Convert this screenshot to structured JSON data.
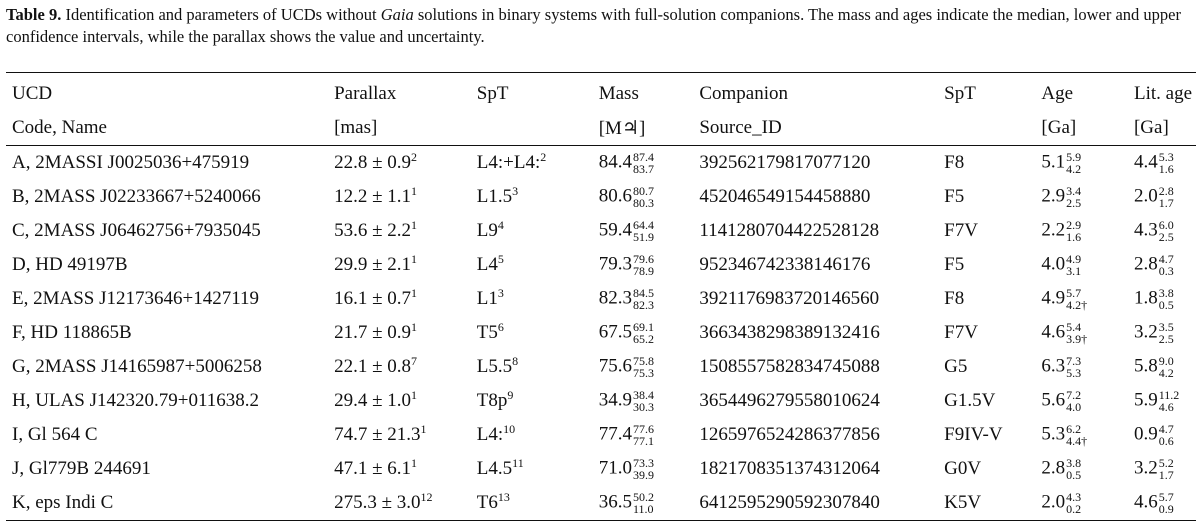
{
  "caption": {
    "label": "Table 9.",
    "text_before": "Identification and parameters of UCDs without",
    "text_em": "Gaia",
    "text_after": "solutions in binary systems with full-solution companions. The mass and ages indicate the median, lower and upper confidence intervals, while the parallax shows the value and uncertainty."
  },
  "header": {
    "row1": [
      "UCD",
      "Parallax",
      "SpT",
      "Mass",
      "Companion",
      "SpT",
      "Age",
      "Lit. age"
    ],
    "row2": [
      "Code, Name",
      "[mas]",
      "",
      "[M♃]",
      "Source_ID",
      "",
      "[Ga]",
      "[Ga]"
    ]
  },
  "rows": [
    {
      "ucd": "A, 2MASSI J0025036+475919",
      "plx": "22.8 ± 0.9",
      "plx_ref": "2",
      "spt": "L4:+L4:",
      "spt_ref": "2",
      "mass": "84.4",
      "mass_up": "87.4",
      "mass_lo": "83.7",
      "companion": "392562179817077120",
      "comp_spt": "F8",
      "age": "5.1",
      "age_up": "5.9",
      "age_lo": "4.2",
      "lit": "4.4",
      "lit_up": "5.3",
      "lit_lo": "1.6"
    },
    {
      "ucd": "B, 2MASS J02233667+5240066",
      "plx": "12.2 ± 1.1",
      "plx_ref": "1",
      "spt": "L1.5",
      "spt_ref": "3",
      "mass": "80.6",
      "mass_up": "80.7",
      "mass_lo": "80.3",
      "companion": "452046549154458880",
      "comp_spt": "F5",
      "age": "2.9",
      "age_up": "3.4",
      "age_lo": "2.5",
      "lit": "2.0",
      "lit_up": "2.8",
      "lit_lo": "1.7"
    },
    {
      "ucd": "C, 2MASS J06462756+7935045",
      "plx": "53.6 ± 2.2",
      "plx_ref": "1",
      "spt": "L9",
      "spt_ref": "4",
      "mass": "59.4",
      "mass_up": "64.4",
      "mass_lo": "51.9",
      "companion": "1141280704422528128",
      "comp_spt": "F7V",
      "age": "2.2",
      "age_up": "2.9",
      "age_lo": "1.6",
      "lit": "4.3",
      "lit_up": "6.0",
      "lit_lo": "2.5"
    },
    {
      "ucd": "D, HD 49197B",
      "plx": "29.9 ± 2.1",
      "plx_ref": "1",
      "spt": "L4",
      "spt_ref": "5",
      "mass": "79.3",
      "mass_up": "79.6",
      "mass_lo": "78.9",
      "companion": "952346742338146176",
      "comp_spt": "F5",
      "age": "4.0",
      "age_up": "4.9",
      "age_lo": "3.1",
      "lit": "2.8",
      "lit_up": "4.7",
      "lit_lo": "0.3"
    },
    {
      "ucd": "E, 2MASS J12173646+1427119",
      "plx": "16.1 ± 0.7",
      "plx_ref": "1",
      "spt": "L1",
      "spt_ref": "3",
      "mass": "82.3",
      "mass_up": "84.5",
      "mass_lo": "82.3",
      "companion": "3921176983720146560",
      "comp_spt": "F8",
      "age": "4.9",
      "age_up": "5.7",
      "age_lo": "4.2†",
      "lit": "1.8",
      "lit_up": "3.8",
      "lit_lo": "0.5"
    },
    {
      "ucd": "F, HD 118865B",
      "plx": "21.7 ± 0.9",
      "plx_ref": "1",
      "spt": "T5",
      "spt_ref": "6",
      "mass": "67.5",
      "mass_up": "69.1",
      "mass_lo": "65.2",
      "companion": "3663438298389132416",
      "comp_spt": "F7V",
      "age": "4.6",
      "age_up": "5.4",
      "age_lo": "3.9†",
      "lit": "3.2",
      "lit_up": "3.5",
      "lit_lo": "2.5"
    },
    {
      "ucd": "G, 2MASS J14165987+5006258",
      "plx": "22.1 ± 0.8",
      "plx_ref": "7",
      "spt": "L5.5",
      "spt_ref": "8",
      "mass": "75.6",
      "mass_up": "75.8",
      "mass_lo": "75.3",
      "companion": "1508557582834745088",
      "comp_spt": "G5",
      "age": "6.3",
      "age_up": "7.3",
      "age_lo": "5.3",
      "lit": "5.8",
      "lit_up": "9.0",
      "lit_lo": "4.2"
    },
    {
      "ucd": "H, ULAS J142320.79+011638.2",
      "plx": "29.4 ± 1.0",
      "plx_ref": "1",
      "spt": "T8p",
      "spt_ref": "9",
      "mass": "34.9",
      "mass_up": "38.4",
      "mass_lo": "30.3",
      "companion": "3654496279558010624",
      "comp_spt": "G1.5V",
      "age": "5.6",
      "age_up": "7.2",
      "age_lo": "4.0",
      "lit": "5.9",
      "lit_up": "11.2",
      "lit_lo": "4.6"
    },
    {
      "ucd": "I, Gl 564 C",
      "plx": "74.7 ± 21.3",
      "plx_ref": "1",
      "spt": "L4:",
      "spt_ref": "10",
      "mass": "77.4",
      "mass_up": "77.6",
      "mass_lo": "77.1",
      "companion": "1265976524286377856",
      "comp_spt": "F9IV-V",
      "age": "5.3",
      "age_up": "6.2",
      "age_lo": "4.4†",
      "lit": "0.9",
      "lit_up": "4.7",
      "lit_lo": "0.6"
    },
    {
      "ucd": "J, Gl779B 244691",
      "plx": "47.1 ± 6.1",
      "plx_ref": "1",
      "spt": "L4.5",
      "spt_ref": "11",
      "mass": "71.0",
      "mass_up": "73.3",
      "mass_lo": "39.9",
      "companion": "1821708351374312064",
      "comp_spt": "G0V",
      "age": "2.8",
      "age_up": "3.8",
      "age_lo": "0.5",
      "lit": "3.2",
      "lit_up": "5.2",
      "lit_lo": "1.7"
    },
    {
      "ucd": "K, eps Indi C",
      "plx": "275.3 ± 3.0",
      "plx_ref": "12",
      "spt": "T6",
      "spt_ref": "13",
      "mass": "36.5",
      "mass_up": "50.2",
      "mass_lo": "11.0",
      "companion": "6412595290592307840",
      "comp_spt": "K5V",
      "age": "2.0",
      "age_up": "4.3",
      "age_lo": "0.2",
      "lit": "4.6",
      "lit_up": "5.7",
      "lit_lo": "0.9"
    }
  ]
}
